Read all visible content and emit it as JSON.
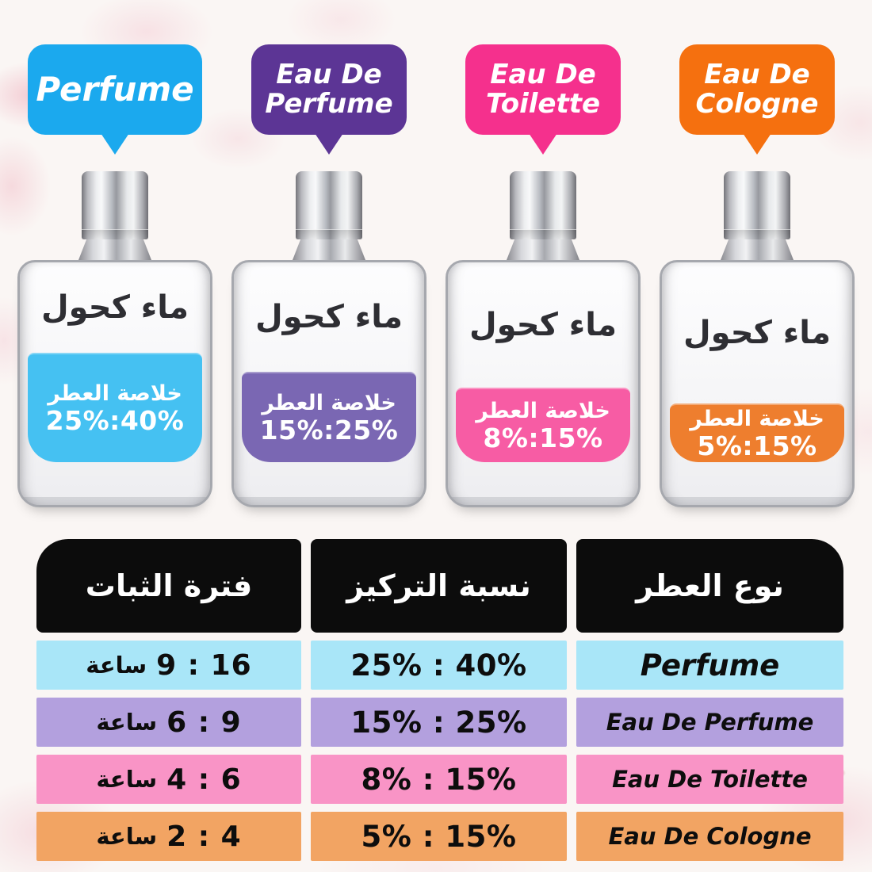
{
  "theme": {
    "blue": "#1ba9ee",
    "purple": "#5c3595",
    "pink": "#f5308d",
    "orange": "#f5700f",
    "liquid_blue": "#45c1f2",
    "liquid_purple": "#7a67b3",
    "liquid_pink": "#f75ca4",
    "liquid_orange": "#ee7e2e",
    "row_blue": "#a9e6f8",
    "row_purple": "#b3a0de",
    "row_pink": "#f994c6",
    "row_orange": "#f2a463",
    "header_bg": "#0c0c0c"
  },
  "bubbles": [
    {
      "label": "Perfume"
    },
    {
      "label": "Eau De\nPerfume"
    },
    {
      "label": "Eau De\nToilette"
    },
    {
      "label": "Eau De\nCologne"
    }
  ],
  "bottles": [
    {
      "alcohol_label": "ماء كحول",
      "essence_label": "خلاصة العطر",
      "range": "25%:40%"
    },
    {
      "alcohol_label": "ماء كحول",
      "essence_label": "خلاصة العطر",
      "range": "15%:25%"
    },
    {
      "alcohol_label": "ماء كحول",
      "essence_label": "خلاصة العطر",
      "range": "8%:15%"
    },
    {
      "alcohol_label": "ماء كحول",
      "essence_label": "خلاصة العطر",
      "range": "5%:15%"
    }
  ],
  "table": {
    "headers": {
      "duration": "فترة الثبات",
      "concentration": "نسبة التركيز",
      "type": "نوع العطر"
    },
    "rows": [
      {
        "duration_unit": "ساعة",
        "duration_range": "9 : 16",
        "concentration": "25% : 40%",
        "type": "Perfume"
      },
      {
        "duration_unit": "ساعة",
        "duration_range": "6 : 9",
        "concentration": "15% : 25%",
        "type": "Eau De Perfume"
      },
      {
        "duration_unit": "ساعة",
        "duration_range": "4 : 6",
        "concentration": "8% : 15%",
        "type": "Eau De Toilette"
      },
      {
        "duration_unit": "ساعة",
        "duration_range": "2 : 4",
        "concentration": "5% : 15%",
        "type": "Eau De Cologne"
      }
    ]
  }
}
